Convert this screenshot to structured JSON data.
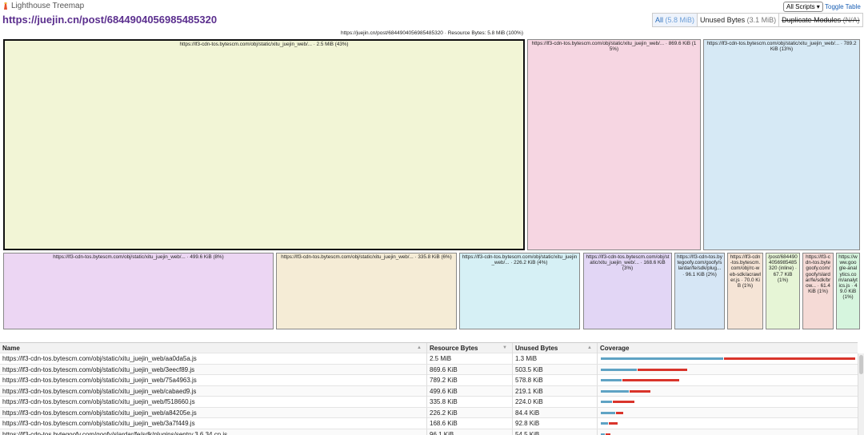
{
  "header": {
    "app_title": "Lighthouse Treemap",
    "url": "https://juejin.cn/post/6844904056985485320",
    "select": "All Scripts",
    "toggle": "Toggle Table",
    "modes": [
      {
        "label": "All",
        "size": "(5.8 MiB)"
      },
      {
        "label": "Unused Bytes",
        "size": "(3.1 MiB)"
      },
      {
        "label": "Duplicate Modules",
        "size": "(N/A)"
      }
    ]
  },
  "treemap": {
    "title": "https://juejin.cn/post/6844904056985485320 · Resource Bytes: 5.8 MiB (100%)",
    "nodes": [
      {
        "label": "https://lf3-cdn-tos.bytescm.com/obj/static/xitu_juejin_web/... · 2.5 MiB (43%)",
        "color": "#f2f5d6"
      },
      {
        "label": "https://lf3-cdn-tos.bytescm.com/obj/static/xitu_juejin_web/... · 869.6 KiB (15%)",
        "color": "#f6d6e2"
      },
      {
        "label": "https://lf3-cdn-tos.bytescm.com/obj/static/xitu_juejin_web/... · 789.2 KiB (13%)",
        "color": "#d6e9f5"
      },
      {
        "label": "https://lf3-cdn-tos.bytescm.com/obj/static/xitu_juejin_web/... · 499.6 KiB (8%)",
        "color": "#ecd6f3"
      },
      {
        "label": "https://lf3-cdn-tos.bytescm.com/obj/static/xitu_juejin_web/... · 335.8 KiB (6%)",
        "color": "#f5ecd6"
      },
      {
        "label": "https://lf3-cdn-tos.bytescm.com/obj/static/xitu_juejin_web/... · 226.2 KiB (4%)",
        "color": "#d6f0f5"
      },
      {
        "label": "https://lf3-cdn-tos.bytescm.com/obj/static/xitu_juejin_web/... · 168.6 KiB (3%)",
        "color": "#e2d6f5"
      },
      {
        "label": "https://lf3-cdn-tos.bytegoofy.com/goofy/slardar/fe/sdk/plug... · 96.1 KiB (2%)",
        "color": "#d6e6f5"
      },
      {
        "label": "https://lf3-cdn-tos.bytescm.com/obj/rc-web-sdk/acrawler.js · 70.0 KiB (1%)",
        "color": "#f5e4d6"
      },
      {
        "label": "/post/6844904056985485320 (inline) · 67.7 KiB (1%)",
        "color": "#e6f5d6"
      },
      {
        "label": "https://lf3-cdn-tos.bytegoofy.com/goofy/slardar/fe/sdk/brow... · 61.4 KiB (1%)",
        "color": "#f5dad6"
      },
      {
        "label": "https://www.google-analytics.com/analytics.js · 49.0 KiB (1%)",
        "color": "#d6f5de"
      }
    ]
  },
  "table": {
    "columns": [
      "Name",
      "Resource Bytes",
      "Unused Bytes",
      "Coverage"
    ],
    "rows": [
      {
        "name": "https://lf3-cdn-tos.bytescm.com/obj/static/xitu_juejin_web/aa0da5a.js",
        "resource": "2.5 MiB",
        "unused": "1.3 MiB"
      },
      {
        "name": "https://lf3-cdn-tos.bytescm.com/obj/static/xitu_juejin_web/3eecf89.js",
        "resource": "869.6 KiB",
        "unused": "503.5 KiB"
      },
      {
        "name": "https://lf3-cdn-tos.bytescm.com/obj/static/xitu_juejin_web/75a4963.js",
        "resource": "789.2 KiB",
        "unused": "578.8 KiB"
      },
      {
        "name": "https://lf3-cdn-tos.bytescm.com/obj/static/xitu_juejin_web/cabaed9.js",
        "resource": "499.6 KiB",
        "unused": "219.1 KiB"
      },
      {
        "name": "https://lf3-cdn-tos.bytescm.com/obj/static/xitu_juejin_web/f518660.js",
        "resource": "335.8 KiB",
        "unused": "224.0 KiB"
      },
      {
        "name": "https://lf3-cdn-tos.bytescm.com/obj/static/xitu_juejin_web/a84205e.js",
        "resource": "226.2 KiB",
        "unused": "84.4 KiB"
      },
      {
        "name": "https://lf3-cdn-tos.bytescm.com/obj/static/xitu_juejin_web/3a7f449.js",
        "resource": "168.6 KiB",
        "unused": "92.8 KiB"
      },
      {
        "name": "https://lf3-cdn-tos.bytegoofy.com/goofy/slardar/fe/sdk/plugins/sentry.3.6.34.cn.js",
        "resource": "96.1 KiB",
        "unused": "54.5 KiB"
      }
    ]
  }
}
